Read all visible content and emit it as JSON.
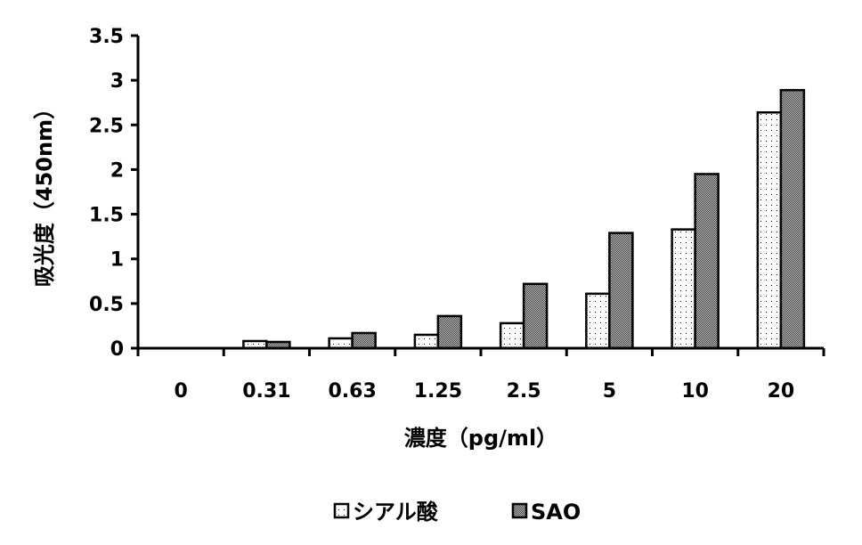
{
  "chart_data": {
    "type": "bar",
    "xlabel": "濃度（pg/ml）",
    "ylabel": "吸光度（450nm）",
    "categories": [
      "0",
      "0.31",
      "0.63",
      "1.25",
      "2.5",
      "5",
      "10",
      "20"
    ],
    "ylim": [
      0,
      3.5
    ],
    "yticks": [
      "0",
      "0.5",
      "1",
      "1.5",
      "2",
      "2.5",
      "3",
      "3.5"
    ],
    "grid": false,
    "legend_position": "bottom",
    "series": [
      {
        "name": "シアル酸",
        "values": [
          0,
          0.08,
          0.11,
          0.15,
          0.28,
          0.61,
          1.33,
          2.64
        ],
        "color": "#ffffff",
        "pattern": "sparse-dots"
      },
      {
        "name": "SAO",
        "values": [
          0,
          0.07,
          0.17,
          0.36,
          0.72,
          1.29,
          1.95,
          2.89
        ],
        "color": "#777777",
        "pattern": "dense-checker"
      }
    ]
  }
}
